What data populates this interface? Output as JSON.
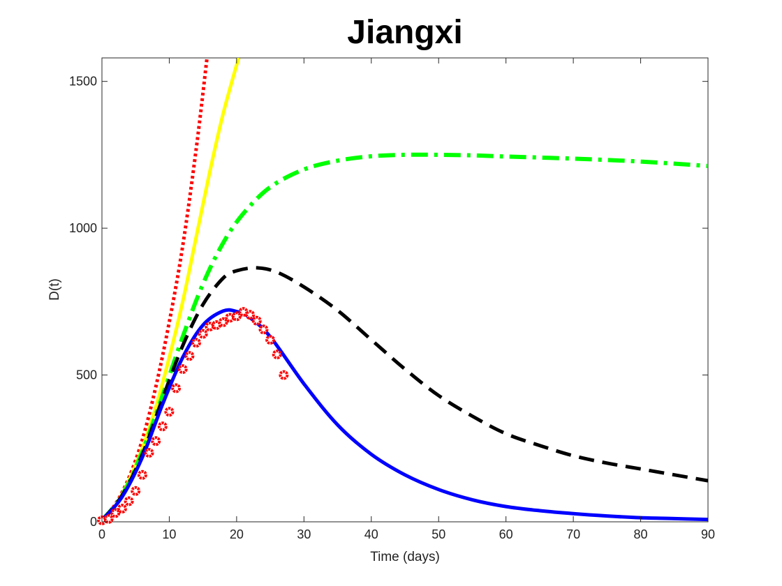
{
  "chart_data": {
    "type": "line",
    "title": "Jiangxi",
    "xlabel": "Time (days)",
    "ylabel": "D(t)",
    "xlim": [
      0,
      90
    ],
    "ylim": [
      0,
      1580
    ],
    "xticks": [
      "0",
      "10",
      "20",
      "30",
      "40",
      "50",
      "60",
      "70",
      "80",
      "90"
    ],
    "yticks": [
      "0",
      "500",
      "1000",
      "1500"
    ],
    "grid": false,
    "series": [
      {
        "style": "dotted",
        "color": "#ff0000",
        "x": [
          0,
          2,
          4,
          6,
          8,
          10,
          12,
          14,
          15.6
        ],
        "y": [
          5,
          60,
          150,
          280,
          460,
          680,
          940,
          1270,
          1580
        ]
      },
      {
        "style": "solid",
        "color": "#ffff00",
        "x": [
          0,
          2,
          4,
          6,
          8,
          10,
          12,
          14,
          16,
          18,
          20.3
        ],
        "y": [
          5,
          55,
          140,
          250,
          390,
          560,
          750,
          970,
          1190,
          1390,
          1580
        ]
      },
      {
        "style": "dashdot",
        "color": "#00ff00",
        "x": [
          0,
          3,
          6,
          9,
          12,
          15,
          18,
          21,
          25,
          30,
          35,
          40,
          45,
          50,
          55,
          60,
          70,
          80,
          90
        ],
        "y": [
          5,
          90,
          240,
          430,
          630,
          810,
          950,
          1050,
          1140,
          1200,
          1230,
          1245,
          1250,
          1250,
          1248,
          1244,
          1237,
          1227,
          1212
        ]
      },
      {
        "style": "dashed",
        "color": "#000000",
        "x": [
          0,
          3,
          6,
          9,
          12,
          15,
          18,
          20,
          23,
          26,
          30,
          35,
          40,
          45,
          50,
          55,
          60,
          65,
          70,
          75,
          80,
          85,
          90
        ],
        "y": [
          5,
          90,
          230,
          420,
          600,
          740,
          830,
          855,
          865,
          850,
          800,
          720,
          620,
          520,
          430,
          360,
          300,
          260,
          225,
          200,
          180,
          160,
          140
        ]
      },
      {
        "style": "solid",
        "color": "#0000ff",
        "x": [
          0,
          3,
          6,
          9,
          12,
          15,
          18,
          20,
          22,
          25,
          30,
          35,
          40,
          45,
          50,
          55,
          60,
          65,
          70,
          75,
          80,
          85,
          90
        ],
        "y": [
          5,
          85,
          220,
          400,
          560,
          670,
          718,
          716,
          695,
          630,
          470,
          330,
          230,
          160,
          110,
          75,
          52,
          38,
          28,
          20,
          14,
          11,
          8
        ]
      },
      {
        "style": "markers",
        "color": "#ff0000",
        "x": [
          0,
          1,
          2,
          3,
          4,
          5,
          6,
          7,
          8,
          9,
          10,
          11,
          12,
          13,
          14,
          15,
          16,
          17,
          18,
          19,
          20,
          21,
          22,
          23,
          24,
          25,
          26,
          27
        ],
        "y": [
          5,
          10,
          30,
          45,
          70,
          105,
          160,
          235,
          275,
          325,
          375,
          455,
          520,
          565,
          610,
          640,
          665,
          670,
          680,
          695,
          700,
          715,
          705,
          685,
          655,
          620,
          570,
          500
        ]
      }
    ]
  }
}
